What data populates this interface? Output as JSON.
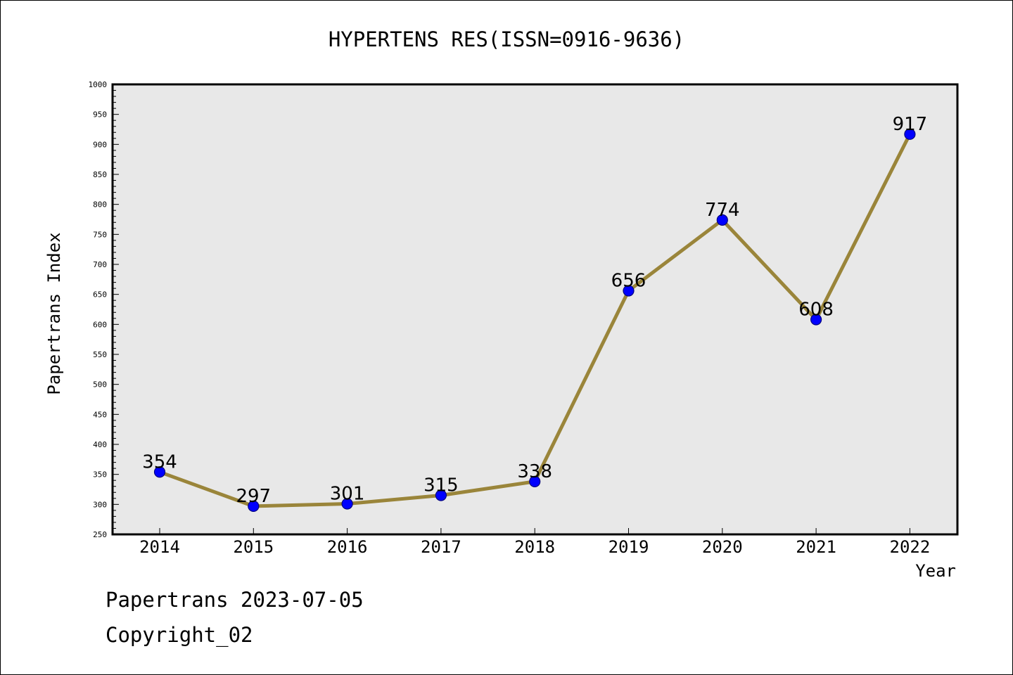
{
  "chart_data": {
    "type": "line",
    "title": "HYPERTENS RES(ISSN=0916-9636)",
    "xlabel": "Year",
    "ylabel": "Papertrans Index",
    "x": [
      "2014",
      "2015",
      "2016",
      "2017",
      "2018",
      "2019",
      "2020",
      "2021",
      "2022"
    ],
    "series": [
      {
        "values": [
          354,
          297,
          301,
          315,
          338,
          656,
          774,
          608,
          917
        ],
        "data_labels": [
          "354",
          "297",
          "301",
          "315",
          "338",
          "656",
          "774",
          "608",
          "917"
        ]
      }
    ],
    "ylim": [
      250,
      1000
    ],
    "yticks": [
      250,
      300,
      350,
      400,
      450,
      500,
      550,
      600,
      650,
      700,
      750,
      800,
      850,
      900,
      950,
      1000
    ],
    "ytick_labels": [
      "250",
      "300",
      "350",
      "400",
      "450",
      "500",
      "550",
      "600",
      "650",
      "700",
      "750",
      "800",
      "850",
      "900",
      "950",
      "1000"
    ],
    "grid": false,
    "colors": {
      "line": "#9a853a",
      "marker_fill": "#0000ff",
      "marker_edge": "#000080",
      "plot_background": "#e8e8e8"
    }
  },
  "footer": {
    "date_line": "Papertrans 2023-07-05",
    "copyright": "Copyright_02"
  }
}
